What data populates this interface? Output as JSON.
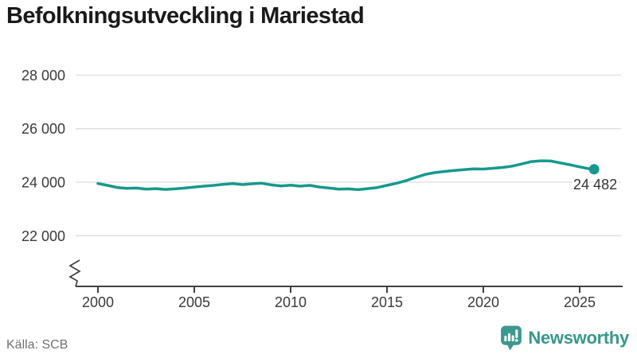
{
  "header": {
    "title": "Befolkningsutveckling i Mariestad"
  },
  "footer": {
    "source": "Källa: SCB",
    "brand_name": "Newsworthy"
  },
  "colors": {
    "line": "#16998c",
    "grid": "#dedede",
    "axis": "#404040",
    "tick_text": "#3a3a3a",
    "label_text": "#333333",
    "title_text": "#1a1a1a",
    "source_text": "#707070",
    "brand": "#37978d"
  },
  "chart_data": {
    "type": "line",
    "title": "Befolkningsutveckling i Mariestad",
    "xlabel": "",
    "ylabel": "",
    "grid": "horizontal-only",
    "legend": "none",
    "axis_break": true,
    "xlim": [
      1998.8,
      2027.2
    ],
    "ylim": [
      22000,
      28000
    ],
    "x_ticks": [
      2000,
      2005,
      2010,
      2015,
      2020,
      2025
    ],
    "x_tick_labels": [
      "2000",
      "2005",
      "2010",
      "2015",
      "2020",
      "2025"
    ],
    "y_ticks": [
      22000,
      24000,
      26000,
      28000
    ],
    "y_tick_labels": [
      "22 000",
      "24 000",
      "26 000",
      "28 000"
    ],
    "series": [
      {
        "name": "Befolkning",
        "x": [
          2000,
          2000.5,
          2001,
          2001.5,
          2002,
          2002.5,
          2003,
          2003.5,
          2004,
          2004.5,
          2005,
          2005.5,
          2006,
          2006.5,
          2007,
          2007.5,
          2008,
          2008.5,
          2009,
          2009.5,
          2010,
          2010.5,
          2011,
          2011.5,
          2012,
          2012.5,
          2013,
          2013.5,
          2014,
          2014.5,
          2015,
          2015.5,
          2016,
          2016.5,
          2017,
          2017.5,
          2018,
          2018.5,
          2019,
          2019.5,
          2020,
          2020.5,
          2021,
          2021.5,
          2022,
          2022.5,
          2023,
          2023.5,
          2024,
          2024.5,
          2025,
          2025.5,
          2025.75
        ],
        "values": [
          23950,
          23880,
          23800,
          23770,
          23780,
          23740,
          23760,
          23730,
          23750,
          23780,
          23820,
          23850,
          23880,
          23920,
          23950,
          23910,
          23940,
          23960,
          23900,
          23860,
          23890,
          23850,
          23880,
          23820,
          23780,
          23740,
          23750,
          23720,
          23760,
          23800,
          23880,
          23960,
          24060,
          24180,
          24290,
          24360,
          24400,
          24440,
          24470,
          24500,
          24490,
          24520,
          24550,
          24600,
          24680,
          24770,
          24800,
          24790,
          24720,
          24650,
          24570,
          24500,
          24482
        ]
      }
    ],
    "end_point": {
      "x": 2025.75,
      "value": 24482,
      "label": "24 482"
    },
    "source": "SCB"
  }
}
